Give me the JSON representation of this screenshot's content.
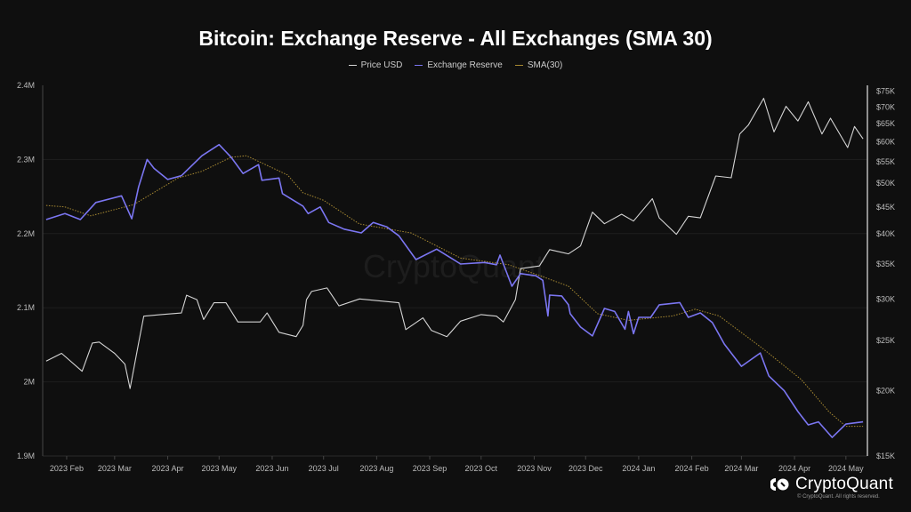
{
  "chart_data": {
    "type": "line",
    "title": "Bitcoin: Exchange Reserve - All Exchanges (SMA 30)",
    "legend": {
      "placement": "top-center",
      "entries": [
        "Price USD",
        "Exchange Reserve",
        "SMA(30)"
      ]
    },
    "x_range": [
      "2023-01-18",
      "2024-05-12"
    ],
    "x_ticks": [
      {
        "date": "2023-02-01",
        "label": "2023 Feb"
      },
      {
        "date": "2023-03-01",
        "label": "2023 Mar"
      },
      {
        "date": "2023-04-01",
        "label": "2023 Apr"
      },
      {
        "date": "2023-05-01",
        "label": "2023 May"
      },
      {
        "date": "2023-06-01",
        "label": "2023 Jun"
      },
      {
        "date": "2023-07-01",
        "label": "2023 Jul"
      },
      {
        "date": "2023-08-01",
        "label": "2023 Aug"
      },
      {
        "date": "2023-09-01",
        "label": "2023 Sep"
      },
      {
        "date": "2023-10-01",
        "label": "2023 Oct"
      },
      {
        "date": "2023-11-01",
        "label": "2023 Nov"
      },
      {
        "date": "2023-12-01",
        "label": "2023 Dec"
      },
      {
        "date": "2024-01-01",
        "label": "2024 Jan"
      },
      {
        "date": "2024-02-01",
        "label": "2024 Feb"
      },
      {
        "date": "2024-03-01",
        "label": "2024 Mar"
      },
      {
        "date": "2024-04-01",
        "label": "2024 Apr"
      },
      {
        "date": "2024-05-01",
        "label": "2024 May"
      }
    ],
    "y_left": {
      "range": [
        1.9,
        2.4
      ],
      "unit": "M",
      "scale": "linear",
      "ticks": [
        {
          "v": 2.4,
          "label": "2.4M"
        },
        {
          "v": 2.3,
          "label": "2.3M"
        },
        {
          "v": 2.2,
          "label": "2.2M"
        },
        {
          "v": 2.1,
          "label": "2.1M"
        },
        {
          "v": 2.0,
          "label": "2M"
        },
        {
          "v": 1.9,
          "label": "1.9M"
        }
      ]
    },
    "y_right": {
      "range": [
        15,
        77
      ],
      "unit": "K USD",
      "scale": "log",
      "ticks": [
        {
          "v": 75,
          "label": "$75K"
        },
        {
          "v": 70,
          "label": "$70K"
        },
        {
          "v": 65,
          "label": "$65K"
        },
        {
          "v": 60,
          "label": "$60K"
        },
        {
          "v": 55,
          "label": "$55K"
        },
        {
          "v": 50,
          "label": "$50K"
        },
        {
          "v": 45,
          "label": "$45K"
        },
        {
          "v": 40,
          "label": "$40K"
        },
        {
          "v": 35,
          "label": "$35K"
        },
        {
          "v": 30,
          "label": "$30K"
        },
        {
          "v": 25,
          "label": "$25K"
        },
        {
          "v": 20,
          "label": "$20K"
        },
        {
          "v": 15,
          "label": "$15K"
        }
      ]
    },
    "grid": true,
    "series": [
      {
        "name": "Price USD",
        "axis": "right",
        "color": "#d4d4d4",
        "style": "solid",
        "points": [
          [
            "2023-01-20",
            22.8
          ],
          [
            "2023-01-29",
            23.6
          ],
          [
            "2023-02-10",
            21.8
          ],
          [
            "2023-02-16",
            24.7
          ],
          [
            "2023-02-20",
            24.8
          ],
          [
            "2023-03-01",
            23.6
          ],
          [
            "2023-03-07",
            22.5
          ],
          [
            "2023-03-10",
            20.2
          ],
          [
            "2023-03-15",
            24.7
          ],
          [
            "2023-03-18",
            27.8
          ],
          [
            "2023-03-28",
            28.0
          ],
          [
            "2023-04-09",
            28.2
          ],
          [
            "2023-04-12",
            30.5
          ],
          [
            "2023-04-18",
            29.9
          ],
          [
            "2023-04-22",
            27.4
          ],
          [
            "2023-04-28",
            29.5
          ],
          [
            "2023-05-05",
            29.5
          ],
          [
            "2023-05-12",
            27.1
          ],
          [
            "2023-05-25",
            27.1
          ],
          [
            "2023-05-29",
            28.2
          ],
          [
            "2023-06-05",
            25.9
          ],
          [
            "2023-06-15",
            25.4
          ],
          [
            "2023-06-19",
            26.7
          ],
          [
            "2023-06-21",
            29.9
          ],
          [
            "2023-06-24",
            31.0
          ],
          [
            "2023-07-03",
            31.5
          ],
          [
            "2023-07-10",
            29.1
          ],
          [
            "2023-07-22",
            30.0
          ],
          [
            "2023-08-14",
            29.5
          ],
          [
            "2023-08-18",
            26.2
          ],
          [
            "2023-08-28",
            27.6
          ],
          [
            "2023-09-02",
            26.1
          ],
          [
            "2023-09-11",
            25.4
          ],
          [
            "2023-09-19",
            27.2
          ],
          [
            "2023-10-01",
            28.0
          ],
          [
            "2023-10-10",
            27.8
          ],
          [
            "2023-10-14",
            27.1
          ],
          [
            "2023-10-21",
            29.9
          ],
          [
            "2023-10-24",
            34.3
          ],
          [
            "2023-11-04",
            34.7
          ],
          [
            "2023-11-10",
            37.3
          ],
          [
            "2023-11-21",
            36.6
          ],
          [
            "2023-11-28",
            37.9
          ],
          [
            "2023-12-05",
            44.0
          ],
          [
            "2023-12-12",
            41.8
          ],
          [
            "2023-12-22",
            43.6
          ],
          [
            "2023-12-29",
            42.3
          ],
          [
            "2024-01-09",
            46.7
          ],
          [
            "2024-01-13",
            42.9
          ],
          [
            "2024-01-23",
            39.9
          ],
          [
            "2024-01-30",
            43.2
          ],
          [
            "2024-02-06",
            42.9
          ],
          [
            "2024-02-15",
            51.6
          ],
          [
            "2024-02-24",
            51.2
          ],
          [
            "2024-02-29",
            62.1
          ],
          [
            "2024-03-05",
            64.6
          ],
          [
            "2024-03-14",
            72.7
          ],
          [
            "2024-03-20",
            62.7
          ],
          [
            "2024-03-27",
            70.2
          ],
          [
            "2024-04-03",
            65.8
          ],
          [
            "2024-04-09",
            71.6
          ],
          [
            "2024-04-17",
            62.1
          ],
          [
            "2024-04-22",
            66.6
          ],
          [
            "2024-05-02",
            58.5
          ],
          [
            "2024-05-06",
            64.2
          ],
          [
            "2024-05-11",
            60.8
          ]
        ]
      },
      {
        "name": "Exchange Reserve",
        "axis": "left",
        "color": "#7b76f2",
        "style": "solid",
        "points": [
          [
            "2023-01-20",
            2.219
          ],
          [
            "2023-01-31",
            2.227
          ],
          [
            "2023-02-09",
            2.219
          ],
          [
            "2023-02-18",
            2.242
          ],
          [
            "2023-03-05",
            2.251
          ],
          [
            "2023-03-11",
            2.22
          ],
          [
            "2023-03-15",
            2.263
          ],
          [
            "2023-03-20",
            2.3
          ],
          [
            "2023-03-24",
            2.288
          ],
          [
            "2023-04-01",
            2.273
          ],
          [
            "2023-04-09",
            2.278
          ],
          [
            "2023-04-21",
            2.305
          ],
          [
            "2023-05-01",
            2.32
          ],
          [
            "2023-05-08",
            2.303
          ],
          [
            "2023-05-15",
            2.281
          ],
          [
            "2023-05-24",
            2.293
          ],
          [
            "2023-05-26",
            2.272
          ],
          [
            "2023-06-05",
            2.275
          ],
          [
            "2023-06-07",
            2.254
          ],
          [
            "2023-06-19",
            2.237
          ],
          [
            "2023-06-22",
            2.227
          ],
          [
            "2023-06-29",
            2.236
          ],
          [
            "2023-07-04",
            2.215
          ],
          [
            "2023-07-13",
            2.206
          ],
          [
            "2023-07-23",
            2.201
          ],
          [
            "2023-07-30",
            2.215
          ],
          [
            "2023-08-07",
            2.209
          ],
          [
            "2023-08-14",
            2.197
          ],
          [
            "2023-08-24",
            2.165
          ],
          [
            "2023-09-05",
            2.179
          ],
          [
            "2023-09-19",
            2.159
          ],
          [
            "2023-10-03",
            2.161
          ],
          [
            "2023-10-10",
            2.158
          ],
          [
            "2023-10-12",
            2.171
          ],
          [
            "2023-10-19",
            2.129
          ],
          [
            "2023-10-24",
            2.146
          ],
          [
            "2023-11-02",
            2.143
          ],
          [
            "2023-11-06",
            2.137
          ],
          [
            "2023-11-09",
            2.089
          ],
          [
            "2023-11-10",
            2.117
          ],
          [
            "2023-11-17",
            2.116
          ],
          [
            "2023-11-21",
            2.104
          ],
          [
            "2023-11-22",
            2.092
          ],
          [
            "2023-11-28",
            2.074
          ],
          [
            "2023-12-05",
            2.062
          ],
          [
            "2023-12-12",
            2.099
          ],
          [
            "2023-12-18",
            2.095
          ],
          [
            "2023-12-24",
            2.071
          ],
          [
            "2023-12-26",
            2.095
          ],
          [
            "2023-12-29",
            2.065
          ],
          [
            "2024-01-01",
            2.087
          ],
          [
            "2024-01-08",
            2.087
          ],
          [
            "2024-01-13",
            2.104
          ],
          [
            "2024-01-25",
            2.107
          ],
          [
            "2024-01-30",
            2.087
          ],
          [
            "2024-02-06",
            2.093
          ],
          [
            "2024-02-13",
            2.08
          ],
          [
            "2024-02-20",
            2.051
          ],
          [
            "2024-03-01",
            2.021
          ],
          [
            "2024-03-12",
            2.039
          ],
          [
            "2024-03-17",
            2.008
          ],
          [
            "2024-03-26",
            1.988
          ],
          [
            "2024-04-03",
            1.96
          ],
          [
            "2024-04-09",
            1.942
          ],
          [
            "2024-04-15",
            1.946
          ],
          [
            "2024-04-23",
            1.925
          ],
          [
            "2024-05-01",
            1.943
          ],
          [
            "2024-05-11",
            1.946
          ]
        ]
      },
      {
        "name": "SMA(30)",
        "axis": "left",
        "color": "#a88a32",
        "style": "dotted",
        "points": [
          [
            "2023-01-20",
            2.238
          ],
          [
            "2023-01-31",
            2.236
          ],
          [
            "2023-02-15",
            2.224
          ],
          [
            "2023-03-12",
            2.239
          ],
          [
            "2023-04-07",
            2.275
          ],
          [
            "2023-04-21",
            2.284
          ],
          [
            "2023-05-08",
            2.303
          ],
          [
            "2023-05-17",
            2.305
          ],
          [
            "2023-06-10",
            2.279
          ],
          [
            "2023-06-19",
            2.255
          ],
          [
            "2023-07-01",
            2.245
          ],
          [
            "2023-07-22",
            2.213
          ],
          [
            "2023-08-21",
            2.201
          ],
          [
            "2023-09-19",
            2.167
          ],
          [
            "2023-10-17",
            2.158
          ],
          [
            "2023-11-07",
            2.141
          ],
          [
            "2023-11-21",
            2.129
          ],
          [
            "2023-12-02",
            2.105
          ],
          [
            "2023-12-08",
            2.092
          ],
          [
            "2023-12-26",
            2.083
          ],
          [
            "2024-01-21",
            2.089
          ],
          [
            "2024-02-03",
            2.098
          ],
          [
            "2024-02-17",
            2.089
          ],
          [
            "2024-03-14",
            2.044
          ],
          [
            "2024-04-05",
            2.003
          ],
          [
            "2024-04-21",
            1.96
          ],
          [
            "2024-05-01",
            1.94
          ],
          [
            "2024-05-11",
            1.94
          ]
        ]
      }
    ]
  },
  "watermark": "CryptoQuant",
  "footer": {
    "brand": "CryptoQuant",
    "copyright": "© CryptoQuant. All rights reserved."
  }
}
